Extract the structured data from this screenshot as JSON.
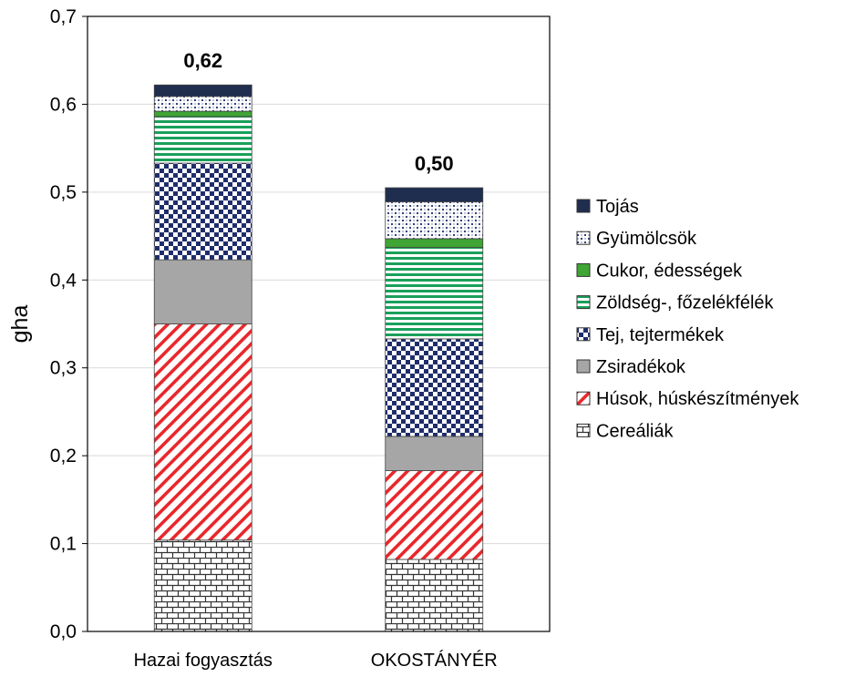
{
  "chart_data": {
    "type": "bar",
    "stacked": true,
    "categories": [
      "Hazai fogyasztás",
      "OKOSTÁNYÉR"
    ],
    "totals": [
      "0,62",
      "0,50"
    ],
    "ylabel": "gha",
    "ylim": [
      0,
      0.7
    ],
    "yticks": [
      "0,0",
      "0,1",
      "0,2",
      "0,3",
      "0,4",
      "0,5",
      "0,6",
      "0,7"
    ],
    "grid": true,
    "legend_position": "right",
    "series": [
      {
        "name": "Cereáliák",
        "values": [
          0.104,
          0.082
        ],
        "pattern": "brick",
        "color": "#333333"
      },
      {
        "name": "Húsok, húskészítmények",
        "values": [
          0.246,
          0.101
        ],
        "pattern": "diagonal",
        "color": "#e8272b"
      },
      {
        "name": "Zsiradékok",
        "values": [
          0.073,
          0.039
        ],
        "pattern": "solid",
        "color": "#a6a6a6"
      },
      {
        "name": "Tej, tejtermékek",
        "values": [
          0.11,
          0.111
        ],
        "pattern": "checker",
        "color": "#1f2d6b"
      },
      {
        "name": "Zöldség-, főzelékfélék",
        "values": [
          0.053,
          0.104
        ],
        "pattern": "hstripe",
        "color": "#19a05a"
      },
      {
        "name": "Cukor, édességek",
        "values": [
          0.006,
          0.01
        ],
        "pattern": "solid",
        "color": "#3fa534"
      },
      {
        "name": "Gyümölcsök",
        "values": [
          0.017,
          0.042
        ],
        "pattern": "dots",
        "color": "#1f2d6b"
      },
      {
        "name": "Tojás",
        "values": [
          0.013,
          0.016
        ],
        "pattern": "solid",
        "color": "#1f2d4f"
      }
    ]
  }
}
